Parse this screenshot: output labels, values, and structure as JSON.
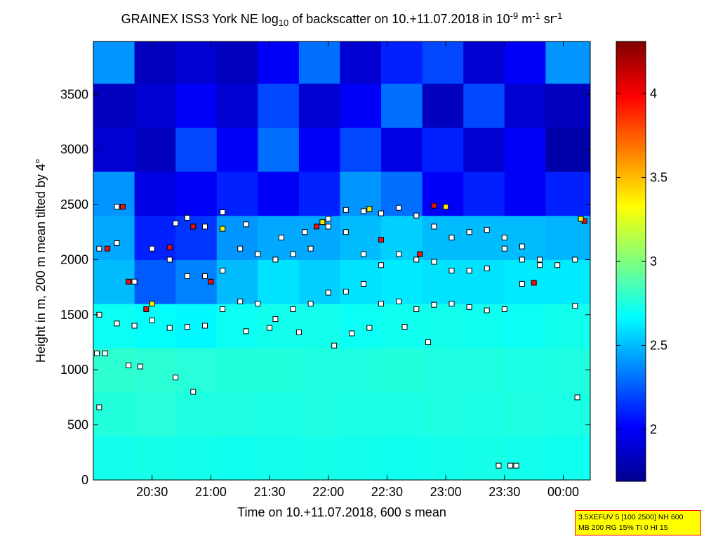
{
  "chart_data": {
    "type": "heatmap",
    "title": [
      "GRAINEX ISS3 York NE log",
      "10",
      " of backscatter on 10.+11.07.2018 in 10",
      "-9",
      " m",
      "-1",
      " sr",
      "-1"
    ],
    "x_label": "Time on 10.+11.07.2018, 600 s mean",
    "y_label": "Height in m, 200 m mean tilted by 4°",
    "xlim": [
      20.0,
      24.23
    ],
    "xticks": [
      {
        "value": 20.5,
        "label": "20:30"
      },
      {
        "value": 21.0,
        "label": "21:00"
      },
      {
        "value": 21.5,
        "label": "21:30"
      },
      {
        "value": 22.0,
        "label": "22:00"
      },
      {
        "value": 22.5,
        "label": "22:30"
      },
      {
        "value": 23.0,
        "label": "23:00"
      },
      {
        "value": 23.5,
        "label": "23:30"
      },
      {
        "value": 24.0,
        "label": "00:00"
      }
    ],
    "ylim": [
      0,
      3980
    ],
    "yticks": [
      0,
      500,
      1000,
      1500,
      2000,
      2500,
      3000,
      3500
    ],
    "clim": [
      1.69,
      4.31
    ],
    "cticks": [
      2,
      2.5,
      3,
      3.5,
      4
    ],
    "colormap": "jet",
    "x_bins": [
      20.0,
      20.35,
      20.7,
      21.05,
      21.4,
      21.75,
      22.1,
      22.45,
      22.8,
      23.15,
      23.5,
      23.85,
      24.23
    ],
    "y_bins": [
      0,
      400,
      800,
      1200,
      1600,
      2000,
      2400,
      2800,
      3200,
      3600,
      3980
    ],
    "z": [
      [
        2.72,
        2.73,
        2.72,
        2.71,
        2.72,
        2.73,
        2.72,
        2.71,
        2.72,
        2.73,
        2.72,
        2.71
      ],
      [
        2.76,
        2.77,
        2.75,
        2.75,
        2.74,
        2.75,
        2.74,
        2.74,
        2.75,
        2.74,
        2.75,
        2.74
      ],
      [
        2.79,
        2.78,
        2.77,
        2.76,
        2.76,
        2.75,
        2.75,
        2.76,
        2.75,
        2.75,
        2.74,
        2.75
      ],
      [
        2.7,
        2.68,
        2.66,
        2.7,
        2.72,
        2.72,
        2.7,
        2.71,
        2.72,
        2.71,
        2.7,
        2.72
      ],
      [
        2.5,
        2.25,
        2.35,
        2.5,
        2.6,
        2.55,
        2.6,
        2.62,
        2.6,
        2.6,
        2.62,
        2.62
      ],
      [
        2.45,
        2.1,
        2.15,
        2.4,
        2.45,
        2.45,
        2.5,
        2.55,
        2.5,
        2.5,
        2.5,
        2.48
      ],
      [
        2.4,
        1.95,
        2.0,
        2.1,
        2.0,
        2.1,
        2.4,
        2.3,
        2.0,
        2.1,
        2.0,
        2.1
      ],
      [
        1.9,
        1.85,
        2.2,
        2.0,
        2.3,
        2.0,
        2.2,
        1.95,
        2.1,
        1.9,
        2.0,
        1.8
      ],
      [
        1.85,
        1.9,
        2.0,
        1.9,
        2.2,
        1.9,
        2.0,
        2.3,
        1.85,
        2.2,
        1.9,
        1.85
      ],
      [
        2.4,
        1.85,
        1.9,
        1.85,
        2.0,
        2.3,
        1.9,
        2.1,
        2.2,
        1.9,
        2.0,
        2.4
      ]
    ],
    "markers": [
      {
        "color": "#ffffff",
        "x": [
          20.05,
          20.2,
          20.35,
          20.5,
          20.65,
          20.8,
          20.95,
          21.1,
          21.25,
          21.4,
          21.55,
          21.7,
          21.85,
          22.0,
          22.15,
          22.3,
          22.45,
          22.6,
          22.75,
          22.9,
          23.05,
          23.2,
          23.35,
          23.5,
          23.65,
          24.1
        ],
        "y": [
          1500,
          1420,
          1400,
          1450,
          1380,
          1390,
          1400,
          1550,
          1620,
          1600,
          1460,
          1550,
          1600,
          1700,
          1710,
          1780,
          1600,
          1620,
          1550,
          1590,
          1600,
          1570,
          1540,
          1550,
          1780,
          1580
        ]
      },
      {
        "color": "#ffffff",
        "x": [
          20.05,
          20.2,
          20.35,
          20.5,
          20.65,
          20.8,
          20.95,
          21.1,
          21.25,
          21.4,
          21.55,
          21.7,
          21.85,
          22.0,
          22.15,
          22.3,
          22.45,
          22.6,
          22.75,
          22.9,
          23.05,
          23.2,
          23.35,
          23.5,
          23.65,
          23.8
        ],
        "y": [
          2100,
          2150,
          1800,
          2100,
          2000,
          1850,
          1850,
          1900,
          2100,
          2050,
          2000,
          2050,
          2100,
          2300,
          2250,
          2050,
          1950,
          2050,
          2000,
          1980,
          1900,
          1900,
          1920,
          2100,
          2000,
          1950
        ]
      },
      {
        "color": "#ffffff",
        "x": [
          20.2,
          20.7,
          20.8,
          20.95,
          21.1,
          21.3,
          21.6,
          21.8,
          22.0,
          22.15,
          22.3,
          22.45,
          22.6,
          22.75,
          22.9,
          23.05,
          23.2,
          23.35,
          23.5,
          23.65,
          23.8,
          23.95,
          24.1
        ],
        "y": [
          2480,
          2330,
          2380,
          2300,
          2430,
          2320,
          2200,
          2250,
          2370,
          2450,
          2440,
          2420,
          2470,
          2400,
          2300,
          2200,
          2250,
          2270,
          2200,
          2120,
          2000,
          1950,
          2000
        ]
      },
      {
        "color": "#ffffff",
        "x": [
          20.03,
          20.1,
          20.3,
          20.4,
          20.7,
          20.85,
          21.3,
          21.5,
          21.75,
          22.05,
          22.2,
          22.35,
          22.65,
          22.85,
          23.45,
          23.55,
          23.6,
          20.05,
          24.12
        ],
        "y": [
          1150,
          1150,
          1040,
          1030,
          930,
          800,
          1350,
          1380,
          1340,
          1220,
          1330,
          1380,
          1390,
          1250,
          130,
          130,
          130,
          660,
          750
        ]
      },
      {
        "color": "#ee1111",
        "x": [
          20.12,
          20.25,
          20.3,
          20.45,
          20.65,
          20.85,
          21.0,
          21.9,
          22.45,
          22.78,
          22.9,
          23.75,
          24.18
        ],
        "y": [
          2100,
          2480,
          1800,
          1550,
          2110,
          2300,
          1800,
          2300,
          2180,
          2050,
          2490,
          1790,
          2350
        ]
      },
      {
        "color": "#ffee00",
        "x": [
          20.5,
          21.1,
          21.95,
          22.35,
          23.0,
          24.15
        ],
        "y": [
          1600,
          2280,
          2340,
          2460,
          2480,
          2370
        ]
      }
    ],
    "note": [
      "3.5XEFUV 5 [100 2500] NH 600",
      "MB 200 RG 15% TI 0 HI 15"
    ]
  }
}
